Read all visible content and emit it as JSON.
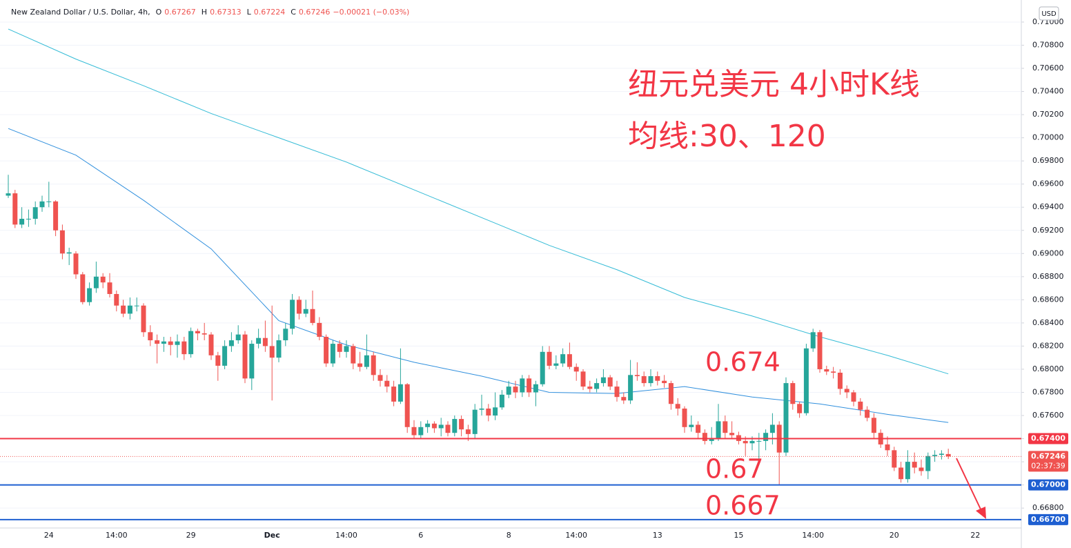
{
  "chart_data": {
    "type": "candlestick",
    "header": {
      "title": "New Zealand Dollar / U.S. Dollar, 4h,",
      "ohlc": [
        {
          "key": "O",
          "value": 0.67267
        },
        {
          "key": "H",
          "value": 0.67313
        },
        {
          "key": "L",
          "value": 0.67224
        },
        {
          "key": "C",
          "value": 0.67246
        }
      ],
      "change": "−0.00021 (−0.03%)"
    },
    "currency": "USD",
    "annotations": [
      "纽元兑美元 4小时K线",
      "均线:30、120"
    ],
    "up_color": "#26a69a",
    "down_color": "#ef5350",
    "ylim": [
      0.66628,
      0.71131
    ],
    "yticks": [
      {
        "value": 0.71,
        "label": "0.71000"
      },
      {
        "value": 0.708,
        "label": "0.70800"
      },
      {
        "value": 0.706,
        "label": "0.70600"
      },
      {
        "value": 0.704,
        "label": "0.70400"
      },
      {
        "value": 0.702,
        "label": "0.70200"
      },
      {
        "value": 0.7,
        "label": "0.70000"
      },
      {
        "value": 0.698,
        "label": "0.69800"
      },
      {
        "value": 0.696,
        "label": "0.69600"
      },
      {
        "value": 0.694,
        "label": "0.69400"
      },
      {
        "value": 0.692,
        "label": "0.69200"
      },
      {
        "value": 0.69,
        "label": "0.69000"
      },
      {
        "value": 0.688,
        "label": "0.68800"
      },
      {
        "value": 0.686,
        "label": "0.68600"
      },
      {
        "value": 0.684,
        "label": "0.68400"
      },
      {
        "value": 0.682,
        "label": "0.68200"
      },
      {
        "value": 0.68,
        "label": "0.68000"
      },
      {
        "value": 0.678,
        "label": "0.67800"
      },
      {
        "value": 0.676,
        "label": "0.67600"
      },
      {
        "value": 0.674,
        "label": "0.67400"
      },
      {
        "value": 0.672,
        "label": "0.67200"
      },
      {
        "value": 0.67,
        "label": "0.67000"
      },
      {
        "value": 0.668,
        "label": "0.66800"
      }
    ],
    "grid": true,
    "categories": [
      null,
      null,
      null,
      null,
      null,
      null,
      "24",
      null,
      null,
      null,
      null,
      null,
      null,
      null,
      null,
      null,
      "14:00",
      null,
      null,
      null,
      null,
      null,
      null,
      null,
      null,
      null,
      null,
      "29",
      null,
      null,
      null,
      null,
      null,
      null,
      null,
      null,
      null,
      null,
      null,
      "Dec",
      null,
      null,
      null,
      null,
      null,
      null,
      null,
      null,
      null,
      null,
      "14:00",
      null,
      null,
      null,
      null,
      null,
      null,
      null,
      null,
      null,
      null,
      "6",
      null,
      null,
      null,
      null,
      null,
      null,
      null,
      null,
      null,
      null,
      null,
      null,
      "8",
      null,
      null,
      null,
      null,
      null,
      null,
      null,
      null,
      null,
      "14:00",
      null,
      null,
      null,
      null,
      null,
      null,
      null,
      null,
      null,
      null,
      null,
      "13",
      null,
      null,
      null,
      null,
      null,
      null,
      null,
      null,
      null,
      null,
      null,
      "15",
      null,
      null,
      null,
      null,
      null,
      null,
      null,
      null,
      null,
      null,
      "14:00",
      null,
      null,
      null,
      null,
      null,
      null,
      null,
      null,
      null,
      null,
      null,
      "20",
      null,
      null,
      null,
      null,
      null,
      null,
      null,
      null,
      null,
      null,
      null,
      "22",
      null,
      null,
      null
    ],
    "open": [
      0.695,
      0.6952,
      0.6925,
      0.693,
      0.693,
      0.694,
      0.6945,
      0.6945,
      0.692,
      0.69,
      0.69,
      0.6882,
      0.6858,
      0.687,
      0.688,
      0.6875,
      0.6865,
      0.6855,
      0.6848,
      0.6855,
      0.6855,
      0.6832,
      0.6825,
      0.6822,
      0.6824,
      0.6821,
      0.6824,
      0.6813,
      0.6833,
      0.6831,
      0.683,
      0.6812,
      0.6803,
      0.682,
      0.6825,
      0.683,
      0.6792,
      0.6822,
      0.6827,
      0.682,
      0.681,
      0.6825,
      0.6835,
      0.686,
      0.6848,
      0.6852,
      0.684,
      0.6828,
      0.6805,
      0.6822,
      0.6815,
      0.682,
      0.6805,
      0.6802,
      0.6812,
      0.6795,
      0.679,
      0.6785,
      0.6772,
      0.6787,
      0.675,
      0.6743,
      0.675,
      0.6753,
      0.6749,
      0.6752,
      0.6745,
      0.6757,
      0.6748,
      0.6744,
      0.6765,
      0.6766,
      0.676,
      0.6767,
      0.6778,
      0.6785,
      0.678,
      0.6792,
      0.678,
      0.6787,
      0.6815,
      0.6803,
      0.6805,
      0.6813,
      0.6802,
      0.6798,
      0.6785,
      0.6783,
      0.6788,
      0.6793,
      0.6785,
      0.6776,
      0.6773,
      0.6795,
      0.6794,
      0.6788,
      0.6794,
      0.679,
      0.6788,
      0.677,
      0.6766,
      0.675,
      0.6752,
      0.6745,
      0.6738,
      0.674,
      0.6755,
      0.6745,
      0.6743,
      0.6738,
      0.6736,
      0.6738,
      0.6738,
      0.6745,
      0.6752,
      0.6728,
      0.6788,
      0.677,
      0.6762,
      0.6818,
      0.6832,
      0.68,
      0.6798,
      0.6797,
      0.6783,
      0.678,
      0.6772,
      0.6765,
      0.6758,
      0.6745,
      0.6735,
      0.673,
      0.6715,
      0.6705,
      0.672,
      0.6715,
      0.6712,
      0.6725,
      0.6726,
      0.67267,
      null,
      null,
      null,
      null,
      null,
      null,
      null
    ],
    "high": [
      0.6968,
      0.6955,
      0.694,
      0.6938,
      0.6945,
      0.695,
      0.6962,
      0.6946,
      0.6925,
      0.6905,
      0.6902,
      0.6884,
      0.6875,
      0.6893,
      0.6883,
      0.6883,
      0.6868,
      0.686,
      0.6862,
      0.6862,
      0.6857,
      0.6838,
      0.683,
      0.6828,
      0.6828,
      0.683,
      0.6828,
      0.6836,
      0.6835,
      0.684,
      0.6832,
      0.6815,
      0.6825,
      0.6832,
      0.6838,
      0.6833,
      0.6825,
      0.6835,
      0.6842,
      0.6855,
      0.683,
      0.684,
      0.6865,
      0.6863,
      0.686,
      0.6868,
      0.6845,
      0.683,
      0.6825,
      0.6825,
      0.6825,
      0.6822,
      0.6815,
      0.683,
      0.6815,
      0.68,
      0.6795,
      0.679,
      0.6818,
      0.6788,
      0.6756,
      0.6755,
      0.6756,
      0.6755,
      0.6758,
      0.6755,
      0.676,
      0.676,
      0.6752,
      0.677,
      0.6778,
      0.677,
      0.678,
      0.6782,
      0.679,
      0.679,
      0.6795,
      0.6795,
      0.679,
      0.682,
      0.682,
      0.6812,
      0.6818,
      0.6823,
      0.6805,
      0.68,
      0.679,
      0.6792,
      0.68,
      0.6795,
      0.679,
      0.678,
      0.6808,
      0.6806,
      0.6798,
      0.68,
      0.6798,
      0.6795,
      0.679,
      0.6775,
      0.6768,
      0.676,
      0.6755,
      0.6748,
      0.675,
      0.677,
      0.676,
      0.6755,
      0.6746,
      0.6742,
      0.6742,
      0.6745,
      0.6748,
      0.6762,
      0.6755,
      0.6793,
      0.679,
      0.6772,
      0.6822,
      0.6835,
      0.6834,
      0.6803,
      0.6802,
      0.68,
      0.6786,
      0.6782,
      0.6775,
      0.6768,
      0.6762,
      0.6748,
      0.6742,
      0.6733,
      0.672,
      0.673,
      0.6728,
      0.6722,
      0.6728,
      0.673,
      0.673,
      0.67313,
      null,
      null,
      null,
      null,
      null,
      null,
      null
    ],
    "low": [
      0.6948,
      0.6922,
      0.6922,
      0.6923,
      0.6925,
      0.6936,
      0.694,
      0.6915,
      0.6895,
      0.689,
      0.6878,
      0.6856,
      0.6855,
      0.6866,
      0.687,
      0.6862,
      0.685,
      0.6845,
      0.6843,
      0.685,
      0.6828,
      0.682,
      0.6805,
      0.6815,
      0.6812,
      0.681,
      0.6808,
      0.681,
      0.6825,
      0.6825,
      0.6808,
      0.679,
      0.68,
      0.6815,
      0.6822,
      0.6788,
      0.6782,
      0.6818,
      0.6815,
      0.6773,
      0.6806,
      0.682,
      0.683,
      0.6843,
      0.6845,
      0.6838,
      0.6825,
      0.6802,
      0.6802,
      0.681,
      0.681,
      0.68,
      0.6798,
      0.68,
      0.679,
      0.6785,
      0.678,
      0.6768,
      0.677,
      0.6745,
      0.674,
      0.674,
      0.6745,
      0.6745,
      0.6742,
      0.6742,
      0.6742,
      0.6742,
      0.6738,
      0.674,
      0.676,
      0.6755,
      0.6756,
      0.6765,
      0.6775,
      0.6775,
      0.6776,
      0.6776,
      0.6768,
      0.6785,
      0.68,
      0.68,
      0.6802,
      0.68,
      0.679,
      0.6782,
      0.678,
      0.678,
      0.6785,
      0.6782,
      0.6772,
      0.677,
      0.677,
      0.679,
      0.6785,
      0.6785,
      0.6786,
      0.6784,
      0.6765,
      0.676,
      0.6745,
      0.6746,
      0.674,
      0.6735,
      0.6735,
      0.6738,
      0.674,
      0.674,
      0.6735,
      0.6725,
      0.673,
      0.6722,
      0.673,
      0.6735,
      0.67,
      0.6725,
      0.6765,
      0.6758,
      0.676,
      0.6815,
      0.6797,
      0.6795,
      0.6792,
      0.6778,
      0.6775,
      0.6768,
      0.676,
      0.6755,
      0.674,
      0.6732,
      0.6725,
      0.6712,
      0.6702,
      0.6702,
      0.671,
      0.6708,
      0.6705,
      0.672,
      0.6722,
      0.67224,
      null,
      null,
      null,
      null,
      null,
      null,
      null
    ],
    "close": [
      0.6952,
      0.6925,
      0.693,
      0.693,
      0.694,
      0.6945,
      0.6945,
      0.692,
      0.69,
      0.6901,
      0.6882,
      0.6858,
      0.687,
      0.688,
      0.6875,
      0.6865,
      0.6855,
      0.6848,
      0.6855,
      0.6855,
      0.6832,
      0.6825,
      0.6822,
      0.6824,
      0.6821,
      0.6824,
      0.6813,
      0.6833,
      0.6831,
      0.683,
      0.6812,
      0.6803,
      0.682,
      0.6825,
      0.683,
      0.6792,
      0.6822,
      0.6827,
      0.682,
      0.681,
      0.6825,
      0.6835,
      0.686,
      0.6848,
      0.6852,
      0.684,
      0.6828,
      0.6805,
      0.6822,
      0.6815,
      0.682,
      0.6805,
      0.6802,
      0.6812,
      0.6795,
      0.679,
      0.6785,
      0.6772,
      0.6787,
      0.675,
      0.6743,
      0.675,
      0.6753,
      0.6749,
      0.6752,
      0.6745,
      0.6757,
      0.6748,
      0.6744,
      0.6765,
      0.6766,
      0.676,
      0.6767,
      0.6778,
      0.6785,
      0.678,
      0.6792,
      0.678,
      0.6787,
      0.6815,
      0.6803,
      0.6805,
      0.6813,
      0.6802,
      0.6798,
      0.6785,
      0.6783,
      0.6788,
      0.6793,
      0.6785,
      0.6776,
      0.6773,
      0.6795,
      0.6794,
      0.6788,
      0.6794,
      0.679,
      0.6788,
      0.677,
      0.6766,
      0.675,
      0.6752,
      0.6745,
      0.6738,
      0.674,
      0.6755,
      0.6745,
      0.6743,
      0.6738,
      0.6736,
      0.6738,
      0.6738,
      0.6745,
      0.6752,
      0.6728,
      0.6788,
      0.677,
      0.6762,
      0.6818,
      0.6832,
      0.68,
      0.6798,
      0.6797,
      0.6783,
      0.678,
      0.6772,
      0.6765,
      0.6758,
      0.6745,
      0.6735,
      0.673,
      0.6715,
      0.6705,
      0.672,
      0.6715,
      0.6712,
      0.6725,
      0.6726,
      0.6727,
      0.67246,
      null,
      null,
      null,
      null,
      null,
      null,
      null
    ],
    "ma": [
      {
        "color": "#33bbd6",
        "x": [
          0,
          10,
          20,
          30,
          40,
          50,
          60,
          70,
          80,
          90,
          100,
          110,
          120,
          130,
          139
        ],
        "values": [
          0.7094,
          0.7068,
          0.7045,
          0.7021,
          0.7,
          0.6979,
          0.6955,
          0.6931,
          0.6907,
          0.6886,
          0.6862,
          0.6846,
          0.6828,
          0.6812,
          0.6796
        ]
      },
      {
        "color": "#2f8fdd",
        "x": [
          0,
          10,
          20,
          30,
          40,
          50,
          60,
          70,
          80,
          90,
          100,
          110,
          120,
          130,
          139
        ],
        "values": [
          0.7008,
          0.6985,
          0.6946,
          0.6904,
          0.6842,
          0.6821,
          0.6806,
          0.6794,
          0.678,
          0.6779,
          0.6785,
          0.6776,
          0.677,
          0.6761,
          0.6754
        ]
      }
    ],
    "levels": [
      {
        "value": 0.674,
        "label": "0.67400",
        "color": "#f23645",
        "note": "0.674"
      },
      {
        "value": 0.67,
        "label": "0.67000",
        "color": "#1e5fd1",
        "note": "0.67"
      },
      {
        "value": 0.667,
        "label": "0.66700",
        "color": "#1e5fd1",
        "note": "0.667"
      }
    ],
    "last": {
      "value": 0.67246,
      "countdown": "02:37:39",
      "color": "#ef5350"
    }
  }
}
